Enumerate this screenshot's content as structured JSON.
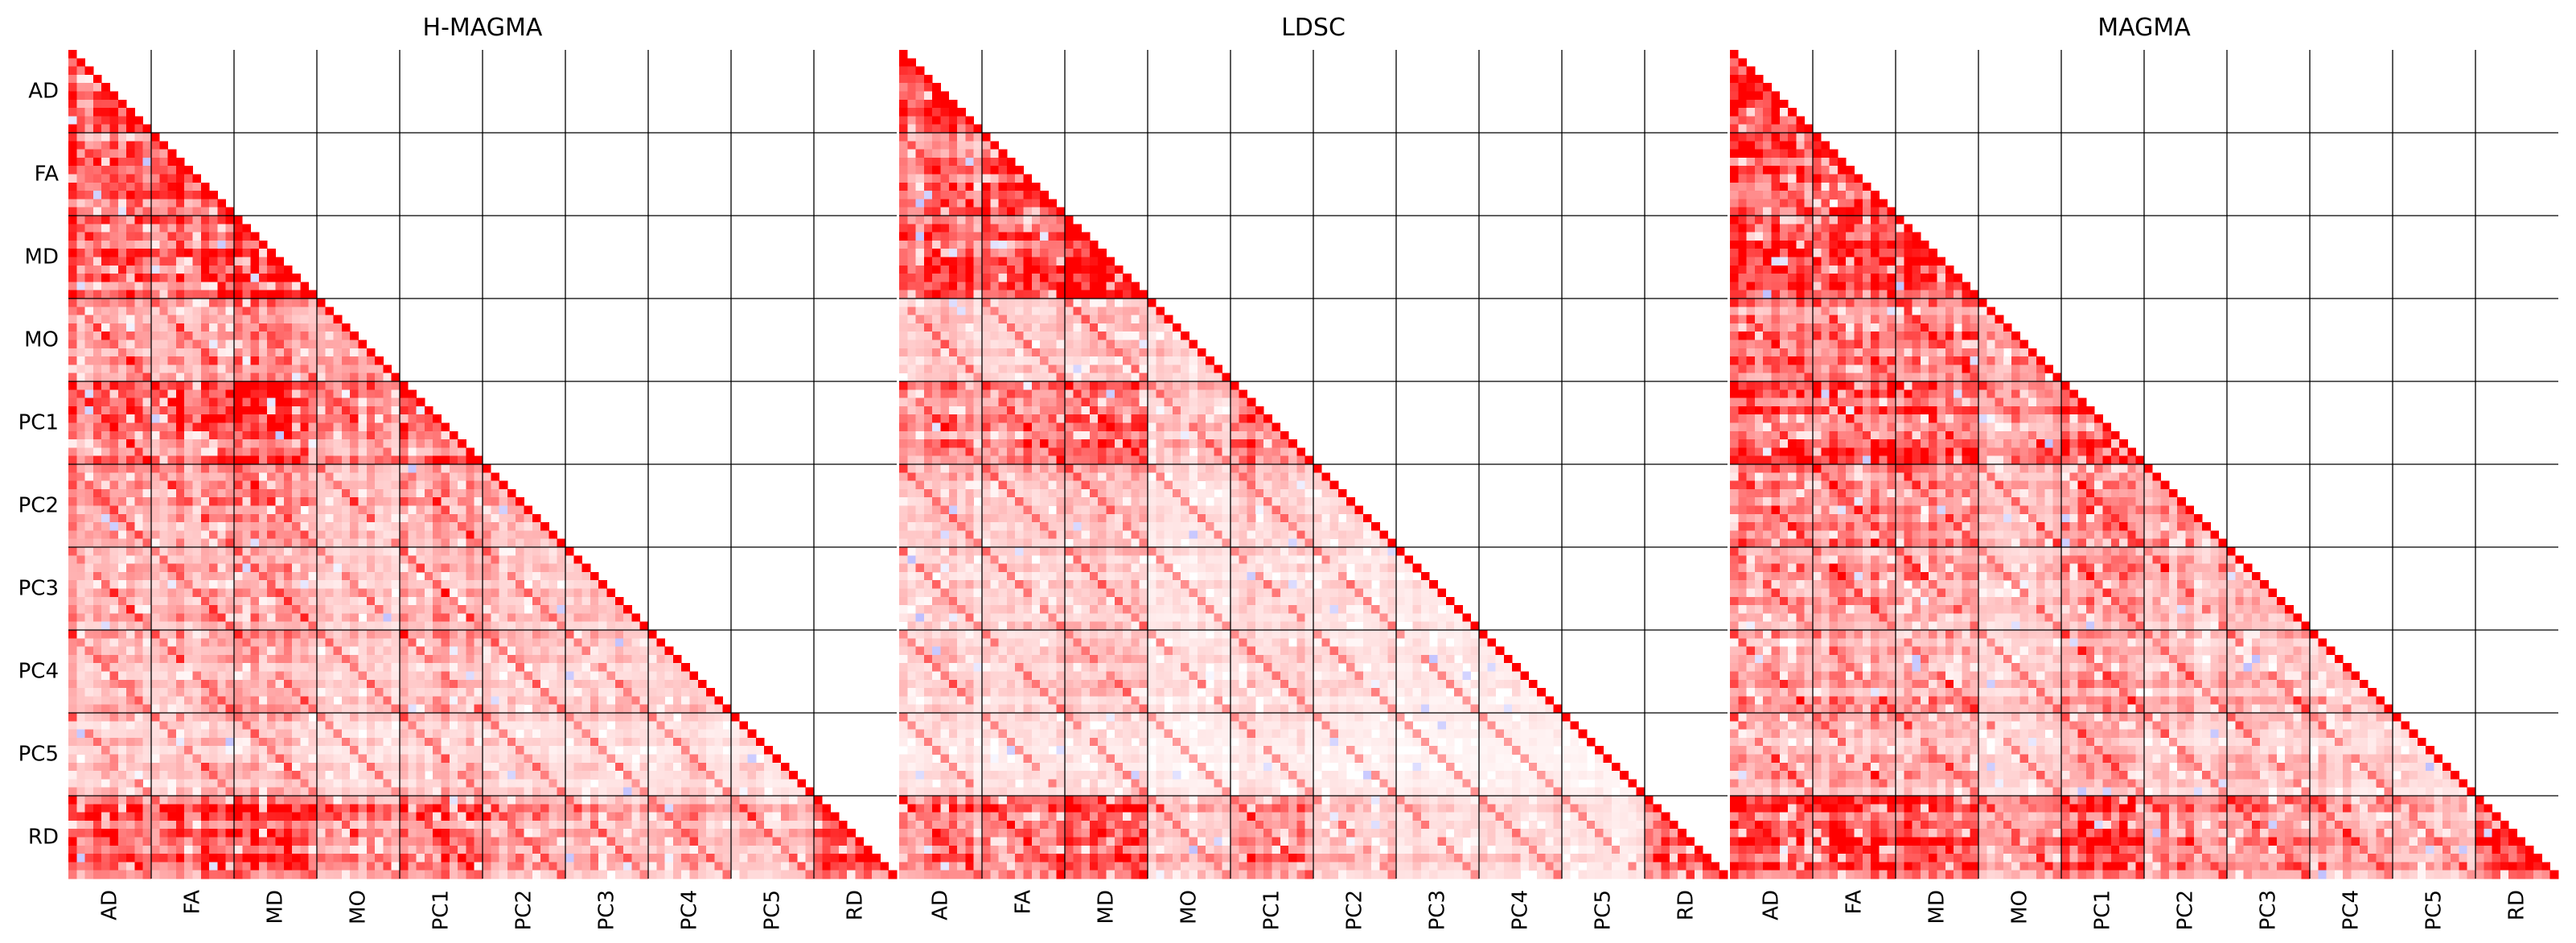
{
  "chart_data": {
    "type": "heatmap",
    "layout": "lower-triangular correlation matrices, three panels side by side",
    "blocks": [
      "AD",
      "FA",
      "MD",
      "MO",
      "PC1",
      "PC2",
      "PC3",
      "PC4",
      "PC5",
      "RD"
    ],
    "value_range": [
      -1,
      1
    ],
    "colors": {
      "positive": "#ff0000",
      "negative": "#0000ff",
      "zero": "#ffffff",
      "grid": "#000000"
    },
    "panels": [
      {
        "title": "H-MAGMA",
        "block_correlation": [
          [
            0.92
          ],
          [
            0.78,
            0.94
          ],
          [
            0.8,
            0.82,
            0.95
          ],
          [
            0.55,
            0.52,
            0.55,
            0.5
          ],
          [
            0.72,
            0.78,
            0.8,
            0.48,
            0.8
          ],
          [
            0.52,
            0.5,
            0.52,
            0.3,
            0.5,
            0.38
          ],
          [
            0.42,
            0.42,
            0.42,
            0.26,
            0.42,
            0.32,
            0.3
          ],
          [
            0.4,
            0.4,
            0.4,
            0.25,
            0.4,
            0.3,
            0.28,
            0.26
          ],
          [
            0.3,
            0.3,
            0.3,
            0.18,
            0.3,
            0.22,
            0.2,
            0.18,
            0.15
          ],
          [
            0.82,
            0.85,
            0.85,
            0.5,
            0.78,
            0.5,
            0.42,
            0.4,
            0.3,
            0.88
          ]
        ]
      },
      {
        "title": "LDSC",
        "block_correlation": [
          [
            0.85
          ],
          [
            0.6,
            0.9
          ],
          [
            0.65,
            0.7,
            0.92
          ],
          [
            0.3,
            0.28,
            0.3,
            0.25
          ],
          [
            0.55,
            0.65,
            0.68,
            0.3,
            0.7
          ],
          [
            0.3,
            0.3,
            0.3,
            0.15,
            0.28,
            0.22
          ],
          [
            0.22,
            0.22,
            0.22,
            0.12,
            0.2,
            0.15,
            0.12
          ],
          [
            0.2,
            0.2,
            0.22,
            0.12,
            0.2,
            0.15,
            0.12,
            0.1
          ],
          [
            0.15,
            0.15,
            0.15,
            0.08,
            0.15,
            0.1,
            0.08,
            0.08,
            0.06
          ],
          [
            0.65,
            0.72,
            0.75,
            0.3,
            0.62,
            0.3,
            0.22,
            0.22,
            0.15,
            0.8
          ]
        ]
      },
      {
        "title": "MAGMA",
        "block_correlation": [
          [
            0.94
          ],
          [
            0.82,
            0.95
          ],
          [
            0.85,
            0.86,
            0.96
          ],
          [
            0.62,
            0.58,
            0.6,
            0.55
          ],
          [
            0.78,
            0.82,
            0.84,
            0.55,
            0.84
          ],
          [
            0.58,
            0.55,
            0.58,
            0.36,
            0.56,
            0.45
          ],
          [
            0.48,
            0.48,
            0.48,
            0.3,
            0.48,
            0.36,
            0.34
          ],
          [
            0.46,
            0.46,
            0.46,
            0.3,
            0.46,
            0.34,
            0.32,
            0.3
          ],
          [
            0.36,
            0.36,
            0.36,
            0.22,
            0.36,
            0.26,
            0.24,
            0.22,
            0.18
          ],
          [
            0.86,
            0.88,
            0.88,
            0.56,
            0.82,
            0.56,
            0.48,
            0.46,
            0.36,
            0.9
          ]
        ]
      }
    ]
  }
}
